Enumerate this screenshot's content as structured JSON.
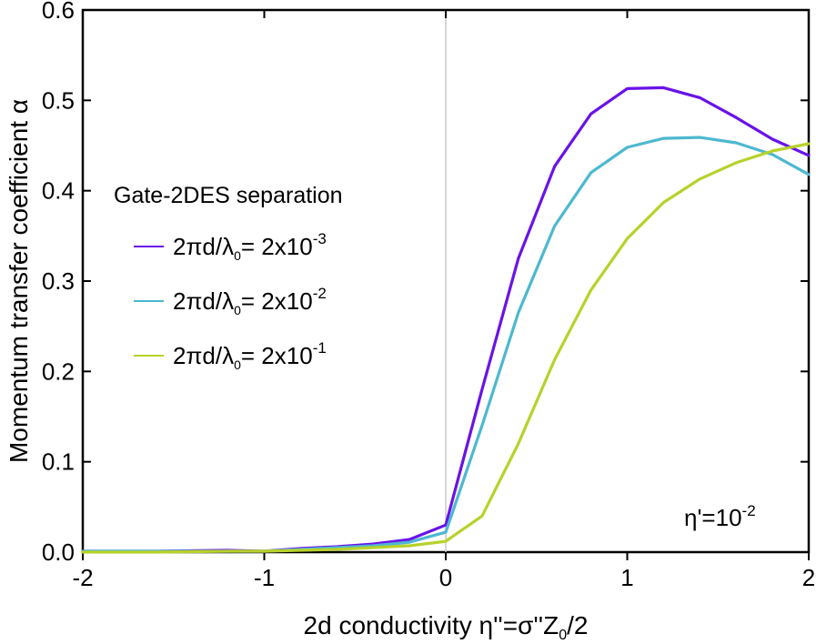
{
  "chart_data": {
    "type": "line",
    "xlabel": "2d conductivity η''=σ''Z₀/2",
    "ylabel": "Momentum transfer coefficient α",
    "xlim": [
      -2,
      2
    ],
    "ylim": [
      0,
      0.6
    ],
    "xticks": [
      -2,
      -1,
      0,
      1,
      2
    ],
    "yticks": [
      0.0,
      0.1,
      0.2,
      0.3,
      0.4,
      0.5,
      0.6
    ],
    "xtick_labels": [
      "-2",
      "-1",
      "0",
      "1",
      "2"
    ],
    "ytick_labels": [
      "0.0",
      "0.1",
      "0.2",
      "0.3",
      "0.4",
      "0.5",
      "0.6"
    ],
    "vline_x": 0,
    "legend": {
      "title": "Gate-2DES separation",
      "placement": "center-left"
    },
    "annotation": {
      "text_base": "η'=10",
      "text_exp": "-2",
      "placement": "bottom-right"
    },
    "series": [
      {
        "name": "2πd/λ₀= 2x10⁻³",
        "label_base": "2πd/λ",
        "label_sub": "0",
        "label_mid": "= 2x10",
        "label_exp": "-3",
        "color": "#6a12e8",
        "x": [
          -2,
          -1.6,
          -1.2,
          -1.0,
          -0.8,
          -0.6,
          -0.4,
          -0.2,
          0.0,
          0.2,
          0.4,
          0.6,
          0.8,
          1.0,
          1.2,
          1.4,
          1.6,
          1.8,
          2.0
        ],
        "y": [
          0.001,
          0.001,
          0.002,
          0.001,
          0.004,
          0.006,
          0.009,
          0.014,
          0.03,
          0.18,
          0.325,
          0.427,
          0.485,
          0.513,
          0.514,
          0.503,
          0.481,
          0.457,
          0.439
        ]
      },
      {
        "name": "2πd/λ₀= 2x10⁻²",
        "label_base": "2πd/λ",
        "label_sub": "0",
        "label_mid": "= 2x10",
        "label_exp": "-2",
        "color": "#4db8d0",
        "x": [
          -2,
          -1.6,
          -1.2,
          -1.0,
          -0.8,
          -0.6,
          -0.4,
          -0.2,
          0.0,
          0.2,
          0.4,
          0.6,
          0.8,
          1.0,
          1.2,
          1.4,
          1.6,
          1.8,
          2.0
        ],
        "y": [
          0.001,
          0.001,
          0.001,
          0.001,
          0.003,
          0.005,
          0.007,
          0.011,
          0.022,
          0.14,
          0.265,
          0.361,
          0.42,
          0.448,
          0.458,
          0.459,
          0.453,
          0.44,
          0.418
        ]
      },
      {
        "name": "2πd/λ₀= 2x10⁻¹",
        "label_base": "2πd/λ",
        "label_sub": "0",
        "label_mid": "= 2x10",
        "label_exp": "-1",
        "color": "#b8d12a",
        "x": [
          -2,
          -1.6,
          -1.2,
          -1.0,
          -0.8,
          -0.6,
          -0.4,
          -0.2,
          0.0,
          0.2,
          0.4,
          0.6,
          0.8,
          1.0,
          1.2,
          1.4,
          1.6,
          1.8,
          2.0
        ],
        "y": [
          0.0,
          0.0,
          0.001,
          0.001,
          0.002,
          0.003,
          0.005,
          0.007,
          0.012,
          0.04,
          0.12,
          0.213,
          0.29,
          0.347,
          0.387,
          0.413,
          0.431,
          0.444,
          0.452
        ]
      }
    ]
  }
}
